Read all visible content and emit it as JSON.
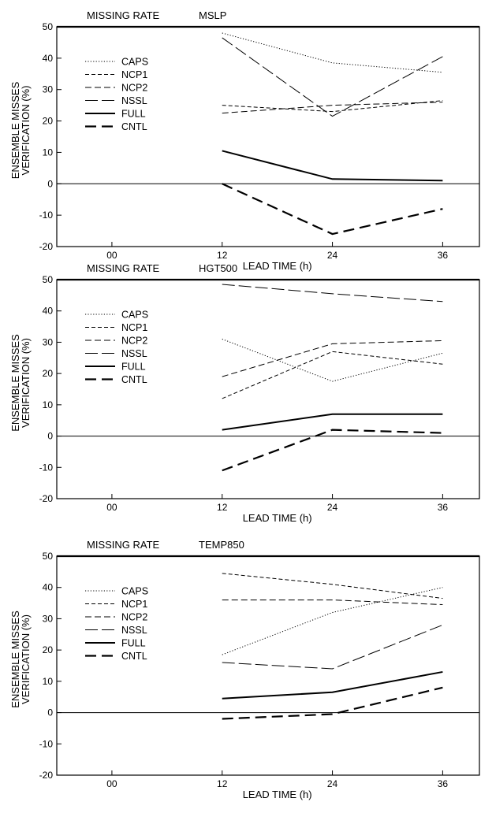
{
  "chart_data": [
    {
      "type": "line",
      "title_left": "MISSING RATE",
      "title_right": "MSLP",
      "xlabel": "LEAD TIME (h)",
      "ylabel_line1": "ENSEMBLE MISSES",
      "ylabel_line2": "VERIFICATION (%)",
      "x": [
        12,
        24,
        36
      ],
      "x_ticks": [
        "00",
        "12",
        "24",
        "36"
      ],
      "xlim": [
        -6,
        40
      ],
      "ylim": [
        -20,
        50
      ],
      "y_ticks": [
        "-20",
        "-10",
        "0",
        "10",
        "20",
        "30",
        "40",
        "50"
      ],
      "series": [
        {
          "name": "CAPS",
          "values": [
            48,
            38.5,
            35.5
          ]
        },
        {
          "name": "NCP1",
          "values": [
            25,
            23,
            26.5
          ]
        },
        {
          "name": "NCP2",
          "values": [
            22.5,
            25,
            26
          ]
        },
        {
          "name": "NSSL",
          "values": [
            46.5,
            21.5,
            40.5
          ]
        },
        {
          "name": "FULL",
          "values": [
            10.5,
            1.5,
            1
          ]
        },
        {
          "name": "CNTL",
          "values": [
            0,
            -16,
            -8
          ]
        }
      ]
    },
    {
      "type": "line",
      "title_left": "MISSING RATE",
      "title_right": "HGT500",
      "xlabel": "LEAD TIME (h)",
      "ylabel_line1": "ENSEMBLE MISSES",
      "ylabel_line2": "VERIFICATION (%)",
      "x": [
        12,
        24,
        36
      ],
      "x_ticks": [
        "00",
        "12",
        "24",
        "36"
      ],
      "xlim": [
        -6,
        40
      ],
      "ylim": [
        -20,
        50
      ],
      "y_ticks": [
        "-20",
        "-10",
        "0",
        "10",
        "20",
        "30",
        "40",
        "50"
      ],
      "series": [
        {
          "name": "CAPS",
          "values": [
            31,
            17.5,
            26.5
          ]
        },
        {
          "name": "NCP1",
          "values": [
            12,
            27,
            23
          ]
        },
        {
          "name": "NCP2",
          "values": [
            19,
            29.5,
            30.5
          ]
        },
        {
          "name": "NSSL",
          "values": [
            48.5,
            45.5,
            43
          ]
        },
        {
          "name": "FULL",
          "values": [
            2,
            7,
            7
          ]
        },
        {
          "name": "CNTL",
          "values": [
            -11,
            2,
            1
          ]
        }
      ]
    },
    {
      "type": "line",
      "title_left": "MISSING RATE",
      "title_right": "TEMP850",
      "xlabel": "LEAD TIME (h)",
      "ylabel_line1": "ENSEMBLE MISSES",
      "ylabel_line2": "VERIFICATION (%)",
      "x": [
        12,
        24,
        36
      ],
      "x_ticks": [
        "00",
        "12",
        "24",
        "36"
      ],
      "xlim": [
        -6,
        40
      ],
      "ylim": [
        -20,
        50
      ],
      "y_ticks": [
        "-20",
        "-10",
        "0",
        "10",
        "20",
        "30",
        "40",
        "50"
      ],
      "series": [
        {
          "name": "CAPS",
          "values": [
            18.5,
            32,
            40
          ]
        },
        {
          "name": "NCP1",
          "values": [
            44.5,
            41,
            36.5
          ]
        },
        {
          "name": "NCP2",
          "values": [
            36,
            36,
            34.5
          ]
        },
        {
          "name": "NSSL",
          "values": [
            16,
            14,
            28
          ]
        },
        {
          "name": "FULL",
          "values": [
            4.5,
            6.5,
            13
          ]
        },
        {
          "name": "CNTL",
          "values": [
            -2,
            -0.5,
            8
          ]
        }
      ]
    }
  ]
}
